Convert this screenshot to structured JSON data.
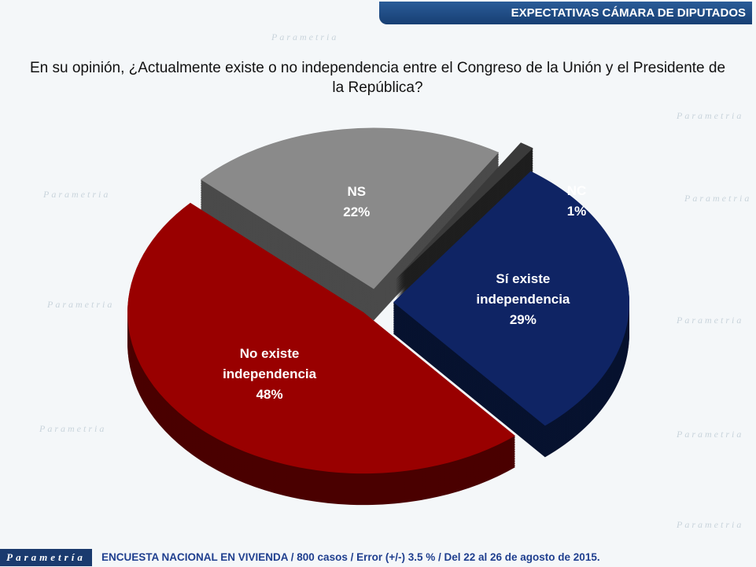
{
  "header": {
    "section": "EXPECTATIVAS CÁMARA DE DIPUTADOS"
  },
  "watermark": "Parametria",
  "chart_data": {
    "type": "pie",
    "title": "En su opinión, ¿Actualmente existe o no independencia entre el Congreso de la Unión y el Presidente de la República?",
    "slices": [
      {
        "label": "NS",
        "lines": [
          "NS"
        ],
        "value": 22,
        "color": "#8a8a8a",
        "side": "#4a4a4a"
      },
      {
        "label": "NC",
        "lines": [
          "NC"
        ],
        "value": 1,
        "color": "#3a3a3a",
        "side": "#1e1e1e"
      },
      {
        "label": "Sí existe independencia",
        "lines": [
          "Sí existe",
          "independencia"
        ],
        "value": 29,
        "color": "#0f2464",
        "side": "#07122f"
      },
      {
        "label": "No existe independencia",
        "lines": [
          "No existe",
          "independencia"
        ],
        "value": 48,
        "color": "#990000",
        "side": "#4a0000"
      }
    ]
  },
  "footer": {
    "logo": "Parametría",
    "note": "ENCUESTA NACIONAL EN VIVIENDA / 800 casos / Error (+/-) 3.5 % / Del 22 al 26 de agosto de 2015."
  }
}
